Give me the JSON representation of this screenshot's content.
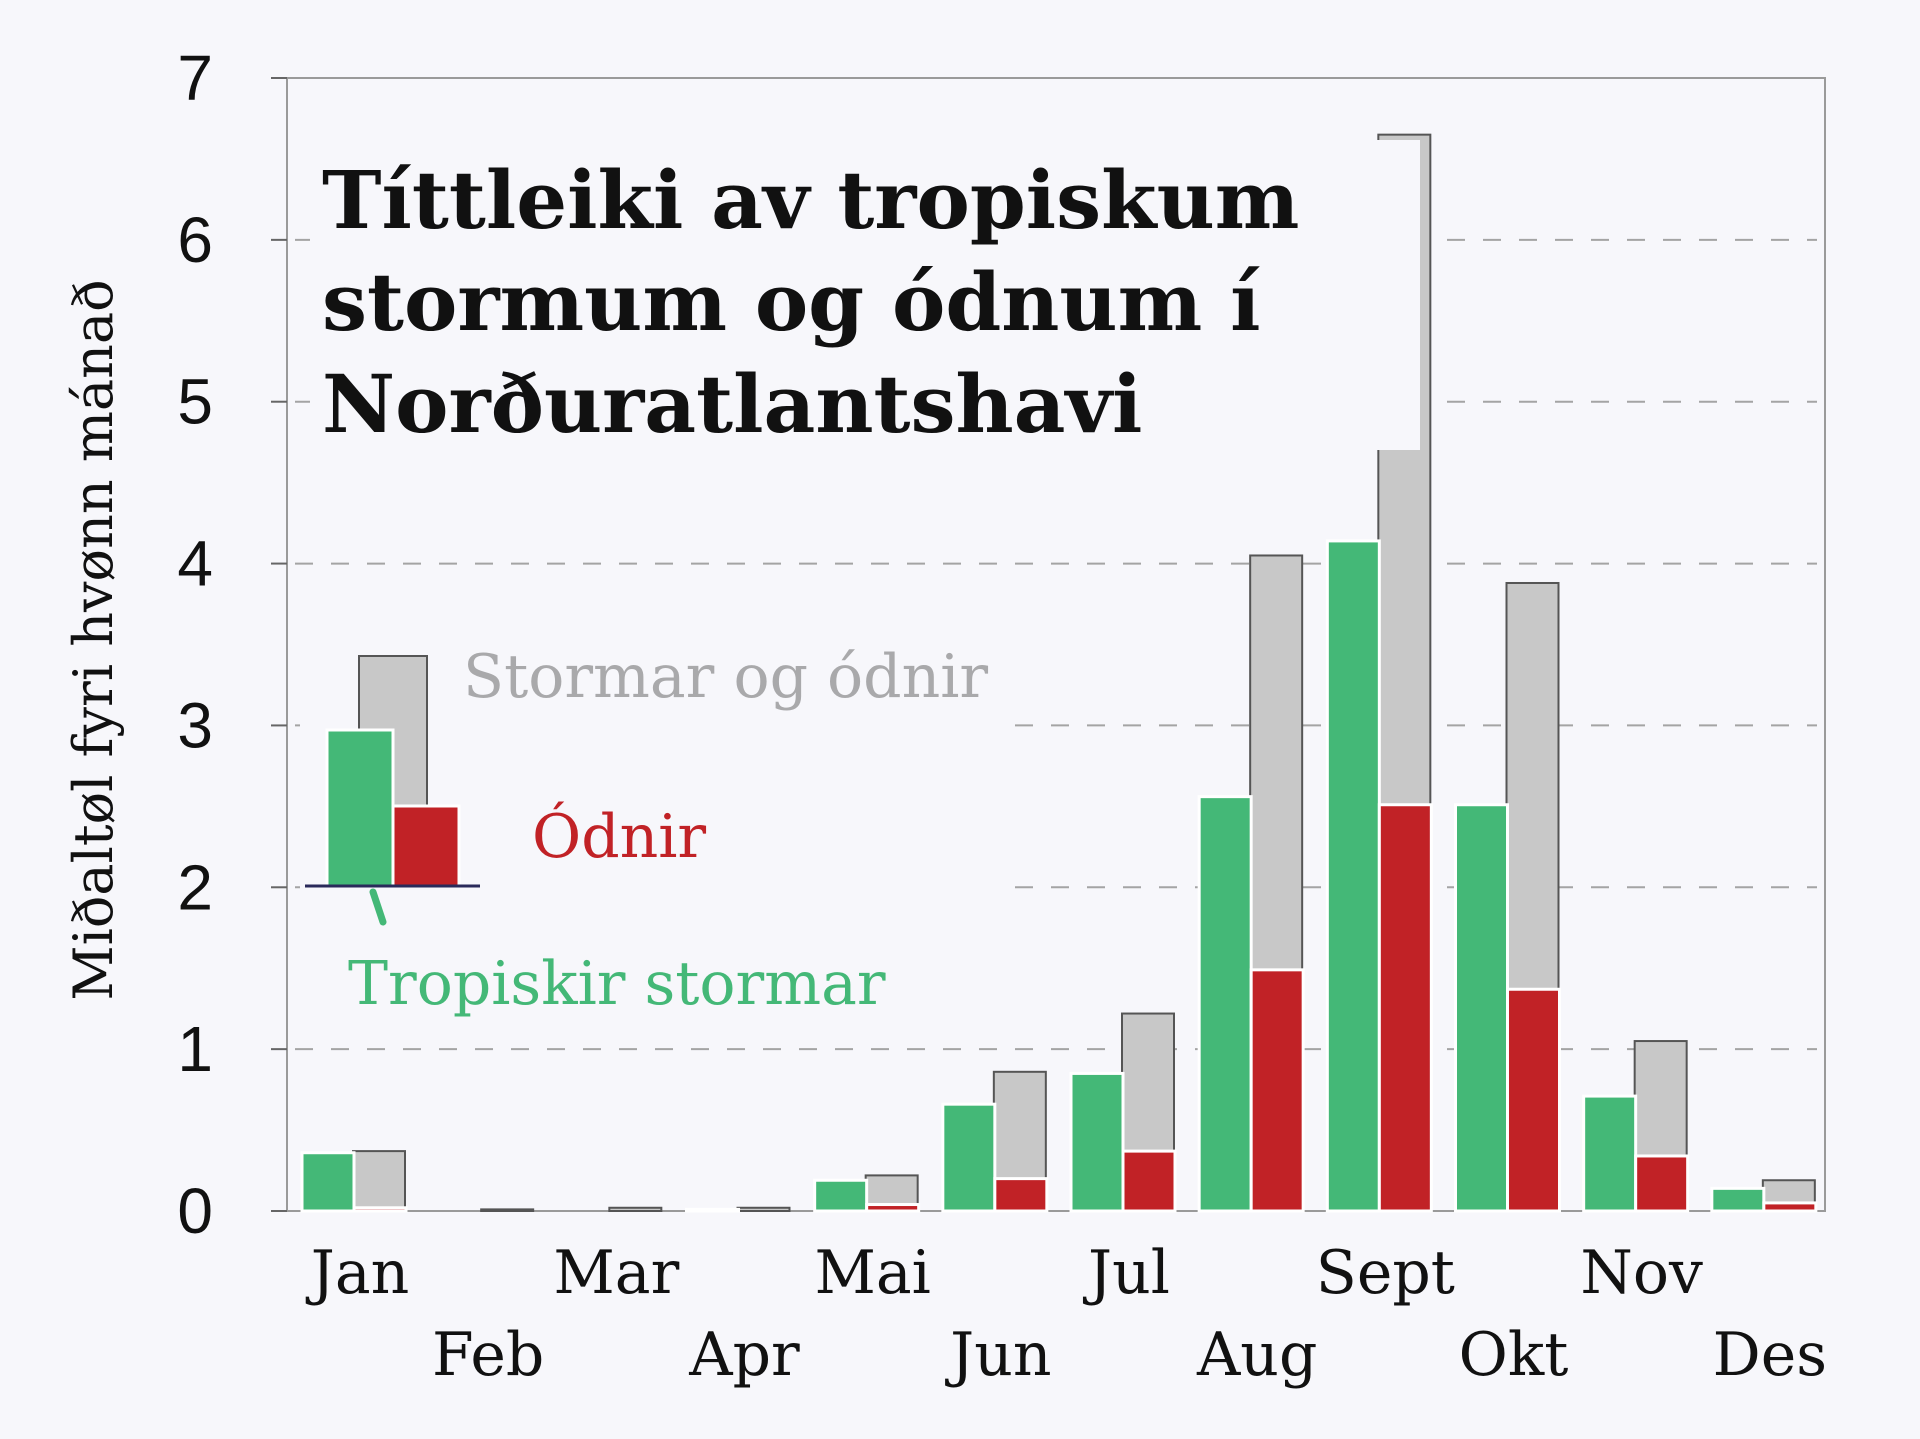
{
  "chart_data": {
    "type": "bar",
    "title_lines": [
      "Títtleiki av tropiskum",
      "stormum og ódnum í",
      "Norðuratlantshavi"
    ],
    "ylabel": "Miðaltøl fyri hvønn mánað",
    "xlabel": "",
    "ylim": [
      0,
      7
    ],
    "yticks": [
      "0",
      "1",
      "2",
      "3",
      "4",
      "5",
      "6",
      "7"
    ],
    "grid": "dashed horizontal",
    "categories": [
      "Jan",
      "Feb",
      "Mar",
      "Apr",
      "Mai",
      "Jun",
      "Jul",
      "Aug",
      "Sept",
      "Okt",
      "Nov",
      "Des"
    ],
    "series": [
      {
        "name": "Stormar og ódnir",
        "color": "#c8c8c8",
        "values": [
          0.37,
          0.01,
          0.02,
          0.02,
          0.22,
          0.86,
          1.22,
          4.05,
          6.65,
          3.88,
          1.05,
          0.19
        ]
      },
      {
        "name": "Tropiskir stormar",
        "color": "#44b877",
        "values": [
          0.36,
          0.0,
          0.0,
          0.01,
          0.19,
          0.66,
          0.85,
          2.56,
          4.14,
          2.51,
          0.71,
          0.14
        ]
      },
      {
        "name": "Ódnir",
        "color": "#c12226",
        "values": [
          0.02,
          0.0,
          0.0,
          0.0,
          0.04,
          0.2,
          0.37,
          1.49,
          2.51,
          1.37,
          0.34,
          0.05
        ]
      }
    ],
    "legend": {
      "placement": "left-middle",
      "label_colors": {
        "storms": "#a9a9ab",
        "hurricanes": "#c12226",
        "tropical": "#44b877"
      }
    }
  }
}
